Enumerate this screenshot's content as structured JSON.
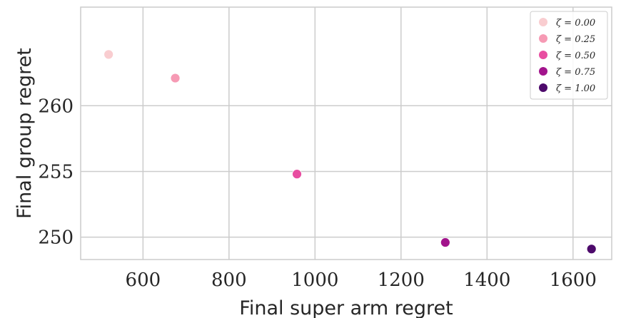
{
  "chart_data": {
    "type": "scatter",
    "xlabel": "Final super arm regret",
    "ylabel": "Final group regret",
    "xlim": [
      455,
      1690
    ],
    "ylim": [
      248.3,
      267.5
    ],
    "x_ticks": [
      600,
      800,
      1000,
      1200,
      1400,
      1600
    ],
    "y_ticks": [
      250,
      255,
      260
    ],
    "grid": true,
    "legend_position": "top-right",
    "series": [
      {
        "name": "ζ = 0.00",
        "color": "#f9cdd0",
        "x": [
          520
        ],
        "y": [
          263.9
        ]
      },
      {
        "name": "ζ = 0.25",
        "color": "#f69ab4",
        "x": [
          675
        ],
        "y": [
          262.1
        ]
      },
      {
        "name": "ζ = 0.50",
        "color": "#e84ea1",
        "x": [
          958
        ],
        "y": [
          254.8
        ]
      },
      {
        "name": "ζ = 0.75",
        "color": "#a2148c",
        "x": [
          1303
        ],
        "y": [
          249.6
        ]
      },
      {
        "name": "ζ = 1.00",
        "color": "#4d0a6b",
        "x": [
          1643
        ],
        "y": [
          249.1
        ]
      }
    ]
  }
}
